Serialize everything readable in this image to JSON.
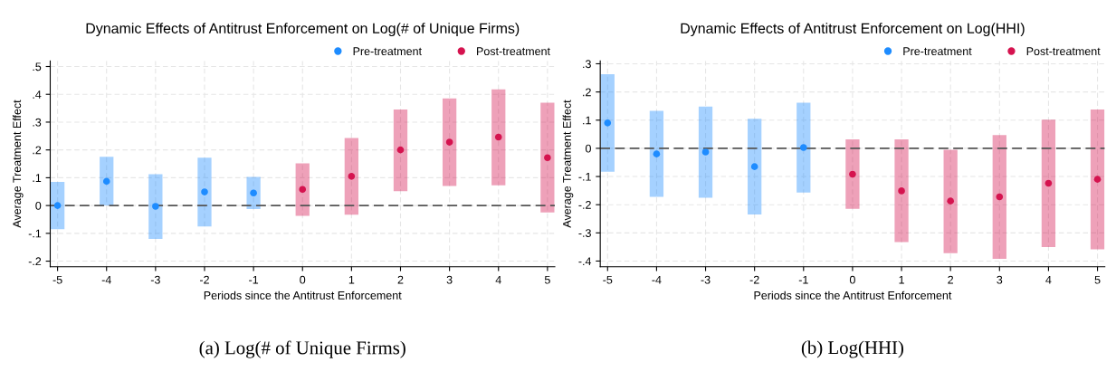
{
  "chart_data": [
    {
      "type": "scatter",
      "title": "Dynamic Effects of Antitrust Enforcement on Log(# of Unique Firms)",
      "xlabel": "Periods since the Antitrust Enforcement",
      "ylabel": "Average Treatment Effect",
      "series": [
        {
          "name": "Pre-treatment",
          "color": "#1e8cff",
          "x": [
            -5,
            -4,
            -3,
            -2,
            -1
          ],
          "values": [
            0.0,
            0.087,
            -0.003,
            0.049,
            0.045
          ],
          "errors": [
            [
              -0.085,
              0.085
            ],
            [
              0.0,
              0.175
            ],
            [
              -0.12,
              0.113
            ],
            [
              -0.075,
              0.172
            ],
            [
              -0.013,
              0.103
            ]
          ]
        },
        {
          "name": "Post-treatment",
          "color": "#d5134f",
          "x": [
            0,
            1,
            2,
            3,
            4,
            5
          ],
          "values": [
            0.058,
            0.105,
            0.2,
            0.228,
            0.246,
            0.172
          ],
          "errors": [
            [
              -0.037,
              0.152
            ],
            [
              -0.033,
              0.243
            ],
            [
              0.052,
              0.345
            ],
            [
              0.07,
              0.385
            ],
            [
              0.073,
              0.418
            ],
            [
              -0.025,
              0.37
            ]
          ]
        }
      ],
      "xlim": [
        -5.15,
        5.15
      ],
      "xticks": [
        -5,
        -4,
        -3,
        -2,
        -1,
        0,
        1,
        2,
        3,
        4,
        5
      ],
      "ylim": [
        -0.22,
        0.52
      ],
      "yticks": [
        {
          "value": -0.2,
          "label": "-.2"
        },
        {
          "value": -0.1,
          "label": "-.1"
        },
        0,
        {
          "value": 0.1,
          "label": ".1"
        },
        {
          "value": 0.2,
          "label": ".2"
        },
        {
          "value": 0.3,
          "label": ".3"
        },
        {
          "value": 0.4,
          "label": ".4"
        },
        {
          "value": 0.5,
          "label": ".5"
        }
      ],
      "ref_lines": [
        {
          "axis": "y",
          "value": 0,
          "color": "#555555",
          "line_style": "dashed"
        }
      ],
      "grid": true,
      "legend": "top right",
      "marker": "circle",
      "annotations": [
        "(a) Log(# of Unique Firms)"
      ]
    },
    {
      "type": "scatter",
      "title": "Dynamic Effects of Antitrust Enforcement on Log(HHI)",
      "xlabel": "Periods since the Antitrust Enforcement",
      "ylabel": "Average Treatment Effect",
      "series": [
        {
          "name": "Pre-treatment",
          "color": "#1e8cff",
          "x": [
            -5,
            -4,
            -3,
            -2,
            -1
          ],
          "values": [
            0.09,
            -0.02,
            -0.013,
            -0.065,
            0.003
          ],
          "errors": [
            [
              -0.083,
              0.263
            ],
            [
              -0.172,
              0.133
            ],
            [
              -0.175,
              0.148
            ],
            [
              -0.235,
              0.105
            ],
            [
              -0.157,
              0.162
            ]
          ]
        },
        {
          "name": "Post-treatment",
          "color": "#d5134f",
          "x": [
            0,
            1,
            2,
            3,
            4,
            5
          ],
          "values": [
            -0.092,
            -0.151,
            -0.187,
            -0.172,
            -0.124,
            -0.11
          ],
          "errors": [
            [
              -0.215,
              0.032
            ],
            [
              -0.333,
              0.032
            ],
            [
              -0.372,
              -0.005
            ],
            [
              -0.392,
              0.047
            ],
            [
              -0.35,
              0.102
            ],
            [
              -0.358,
              0.138
            ]
          ]
        }
      ],
      "xlim": [
        -5.15,
        5.15
      ],
      "xticks": [
        -5,
        -4,
        -3,
        -2,
        -1,
        0,
        1,
        2,
        3,
        4,
        5
      ],
      "ylim": [
        -0.42,
        0.31
      ],
      "yticks": [
        {
          "value": -0.4,
          "label": "-.4"
        },
        {
          "value": -0.3,
          "label": "-.3"
        },
        {
          "value": -0.2,
          "label": "-.2"
        },
        {
          "value": -0.1,
          "label": "-.1"
        },
        0,
        {
          "value": 0.1,
          "label": ".1"
        },
        {
          "value": 0.2,
          "label": ".2"
        },
        {
          "value": 0.3,
          "label": ".3"
        }
      ],
      "ref_lines": [
        {
          "axis": "y",
          "value": 0,
          "color": "#555555",
          "line_style": "dashed"
        }
      ],
      "grid": true,
      "legend": "top right",
      "marker": "circle",
      "annotations": [
        "(b) Log(HHI)"
      ]
    }
  ]
}
